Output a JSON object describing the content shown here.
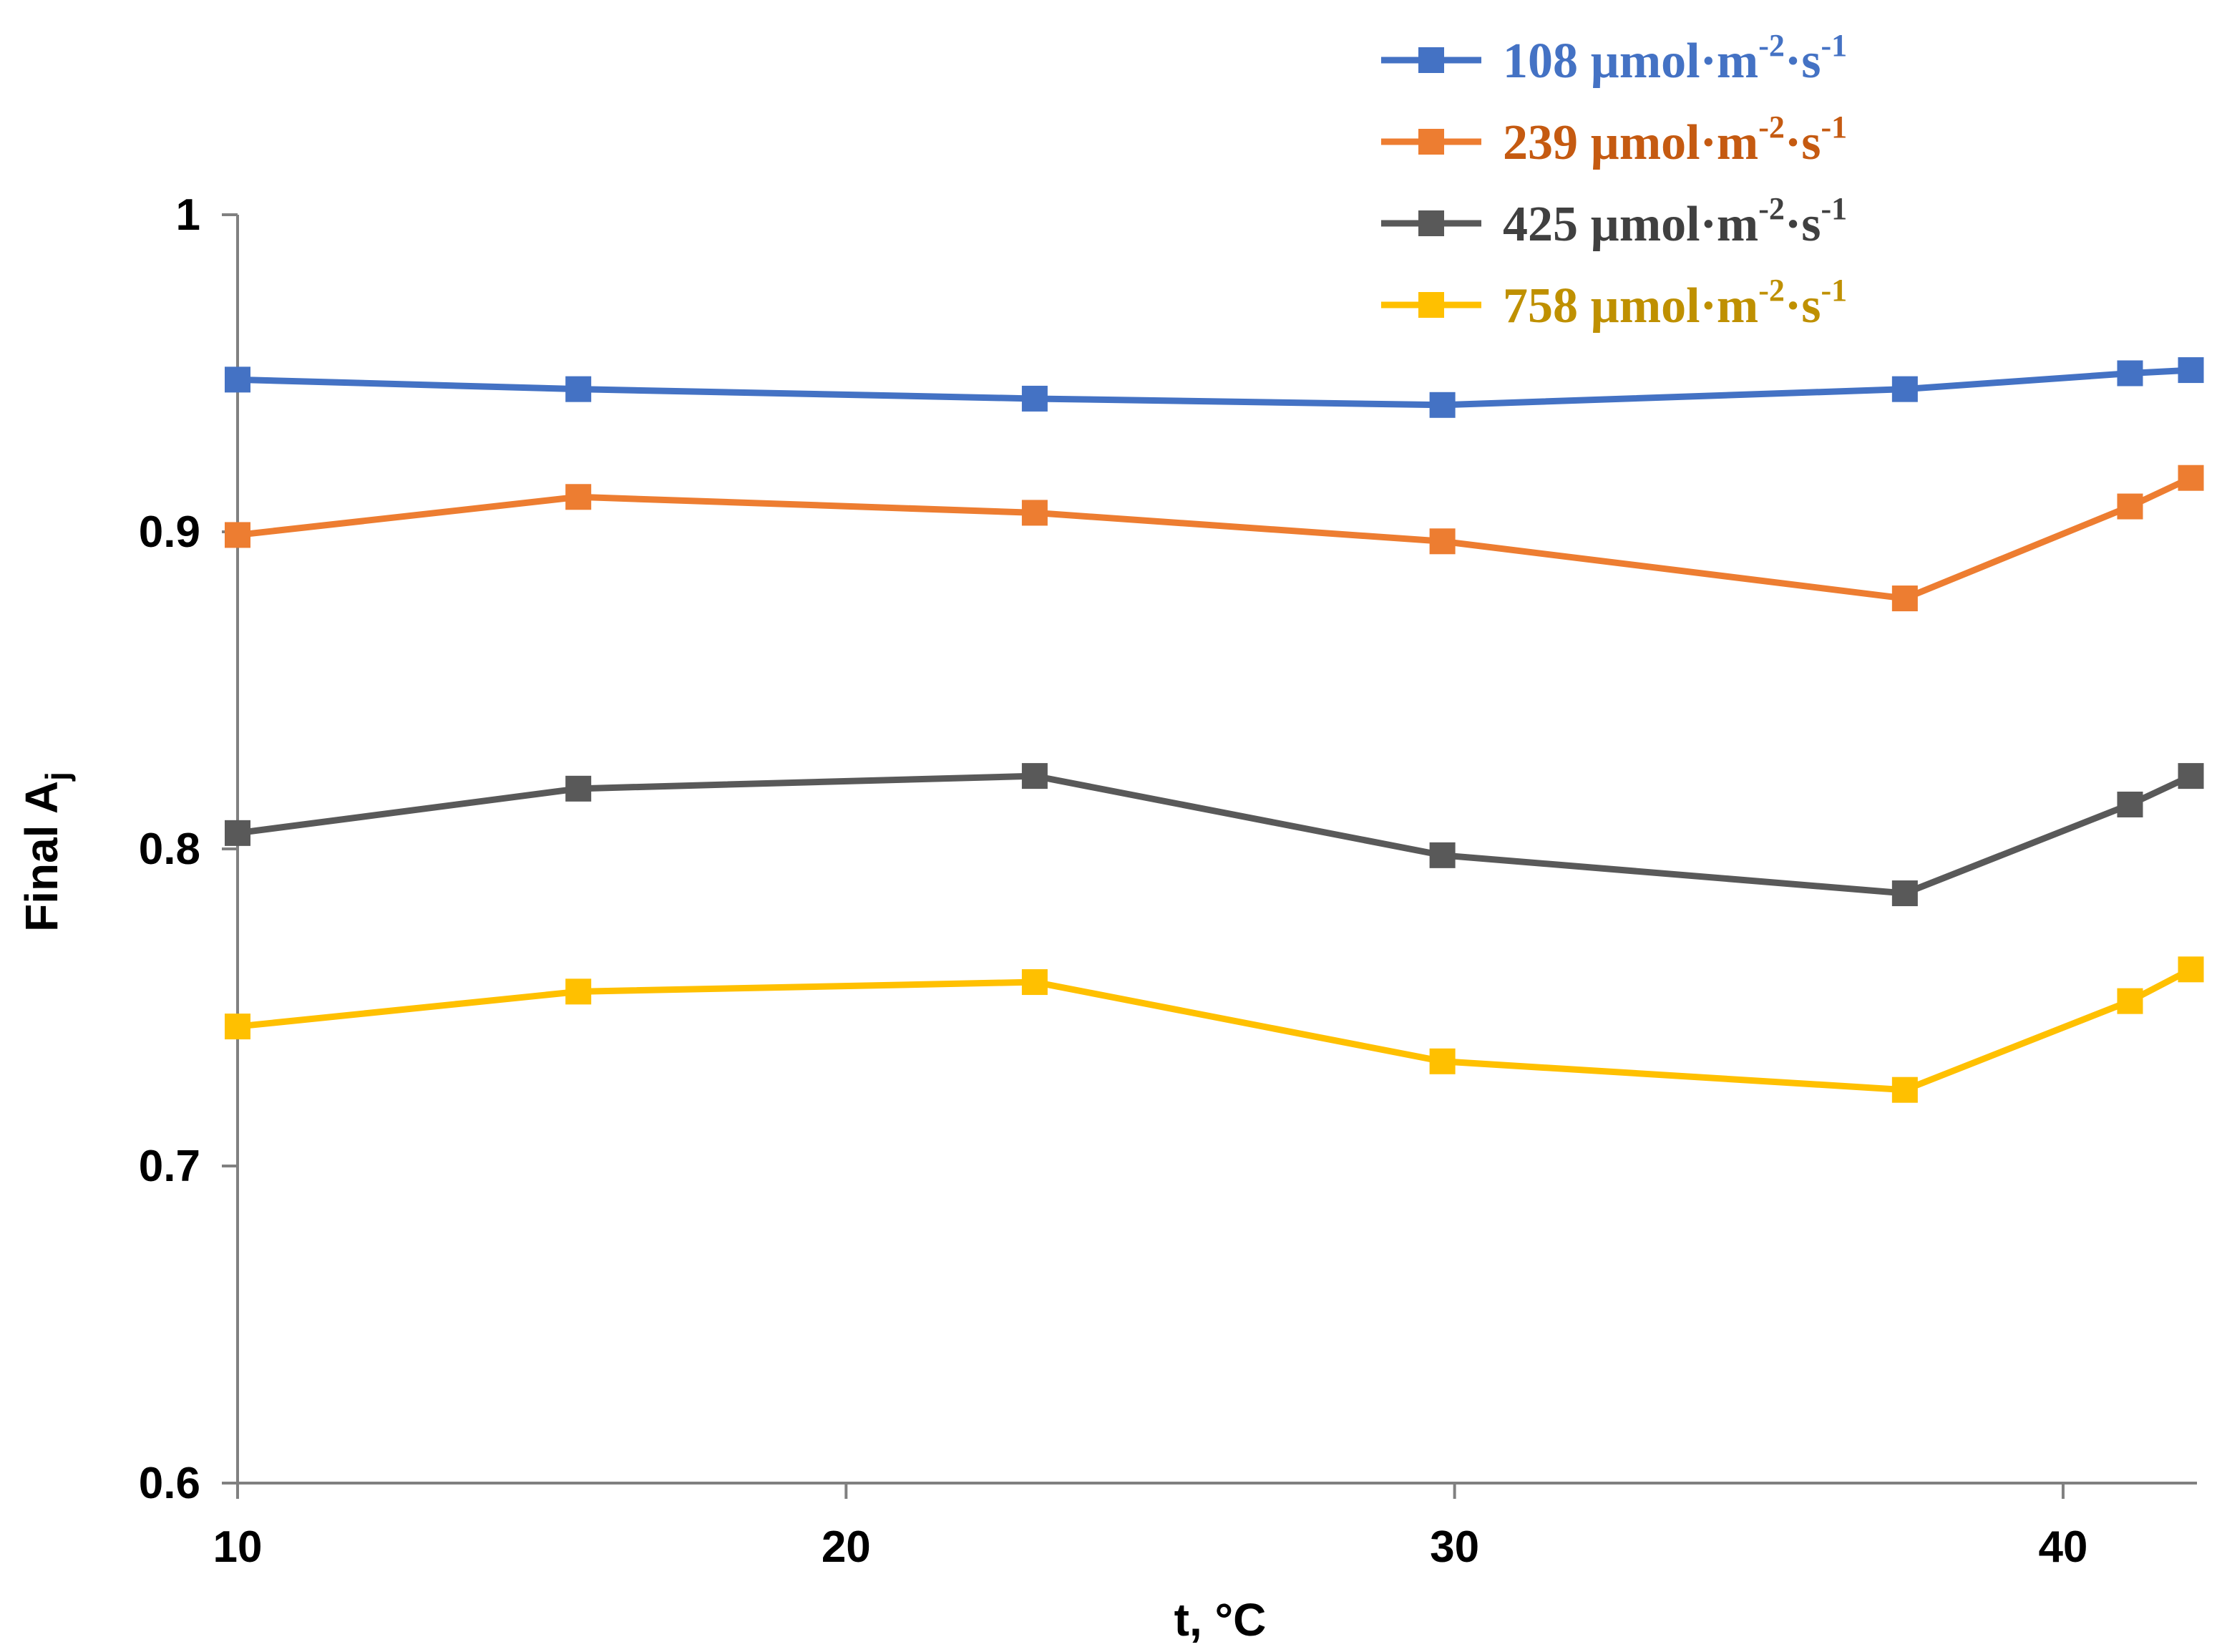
{
  "chart_data": {
    "type": "line",
    "title": "",
    "xlabel": "t, °C",
    "ylabel": {
      "main": "Final A",
      "subscript": "j"
    },
    "xlim": [
      10,
      42.2
    ],
    "ylim": [
      0.6,
      1.0
    ],
    "xticks": [
      10,
      20,
      30,
      40
    ],
    "yticks": [
      0.6,
      0.7,
      0.8,
      0.9,
      1.0
    ],
    "ytick_labels": [
      "0.6",
      "0.7",
      "0.8",
      "0.9",
      "1"
    ],
    "xtick_labels": [
      "10",
      "20",
      "30",
      "40"
    ],
    "grid": false,
    "legend_position": "top-right",
    "x": [
      10,
      15.6,
      23.1,
      29.8,
      37.4,
      41.1,
      42.1
    ],
    "series": [
      {
        "name": "108 µmol·m-2·s-1",
        "label_parts": [
          "108 µmol·m",
          "-2",
          "·s",
          "-1"
        ],
        "color": "#4472C4",
        "values": [
          0.948,
          0.945,
          0.942,
          0.94,
          0.945,
          0.95,
          0.951
        ]
      },
      {
        "name": "239 µmol·m-2·s-1",
        "label_parts": [
          "239 µmol·m",
          "-2",
          "·s",
          "-1"
        ],
        "color": "#ED7D31",
        "values": [
          0.899,
          0.911,
          0.906,
          0.897,
          0.879,
          0.908,
          0.917
        ]
      },
      {
        "name": "425 µmol·m-2·s-1",
        "label_parts": [
          "425 µmol·m",
          "-2",
          "·s",
          "-1"
        ],
        "color": "#595959",
        "values": [
          0.805,
          0.819,
          0.823,
          0.798,
          0.786,
          0.814,
          0.823
        ]
      },
      {
        "name": "758 µmol·m-2·s-1",
        "label_parts": [
          "758 µmol·m",
          "-2",
          "·s",
          "-1"
        ],
        "color": "#FFC000",
        "values": [
          0.744,
          0.755,
          0.758,
          0.733,
          0.724,
          0.752,
          0.762
        ]
      }
    ],
    "legend_text_colors": [
      "#4472C4",
      "#C55A11",
      "#404040",
      "#BF9000"
    ]
  }
}
